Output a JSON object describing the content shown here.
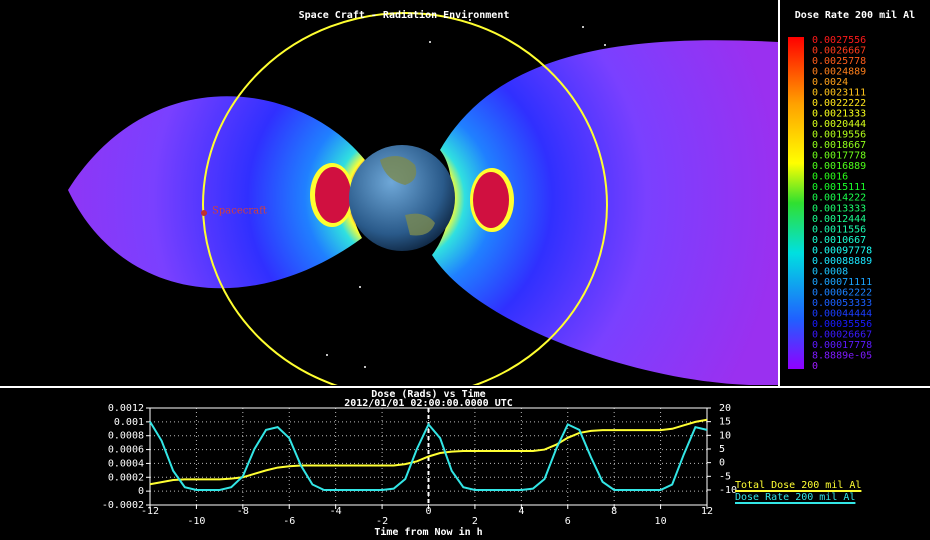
{
  "viewer": {
    "title": "Space Craft - Radiation Environment",
    "spacecraft_label": "Spacecraft"
  },
  "colorbar": {
    "title": "Dose Rate 200 mil Al",
    "labels": [
      "0.0027556",
      "0.0026667",
      "0.0025778",
      "0.0024889",
      "0.0024",
      "0.0023111",
      "0.0022222",
      "0.0021333",
      "0.0020444",
      "0.0019556",
      "0.0018667",
      "0.0017778",
      "0.0016889",
      "0.0016",
      "0.0015111",
      "0.0014222",
      "0.0013333",
      "0.0012444",
      "0.0011556",
      "0.0010667",
      "0.00097778",
      "0.00088889",
      "0.0008",
      "0.00071111",
      "0.00062222",
      "0.00053333",
      "0.00044444",
      "0.00035556",
      "0.00026667",
      "0.00017778",
      "8.8889e-05",
      "0"
    ]
  },
  "chart_data": {
    "type": "line",
    "title": "Dose (Rads) vs Time",
    "subtitle": "2012/01/01 02:00:00.0000 UTC",
    "x_label": "Time from Now in h",
    "x": [
      -12,
      -11.5,
      -11,
      -10.5,
      -10,
      -9.5,
      -9,
      -8.5,
      -8,
      -7.5,
      -7,
      -6.5,
      -6,
      -5.5,
      -5,
      -4.5,
      -4,
      -3.5,
      -3,
      -2.5,
      -2,
      -1.5,
      -1,
      -0.5,
      0,
      0.5,
      1,
      1.5,
      2,
      2.5,
      3,
      3.5,
      4,
      4.5,
      5,
      5.5,
      6,
      6.5,
      7,
      7.5,
      8,
      8.5,
      9,
      9.5,
      10,
      10.5,
      11,
      11.5,
      12
    ],
    "series": [
      {
        "name": "Total Dose 200 mil Al",
        "color": "#ffff33",
        "axis": "y",
        "values": [
          0.0001,
          0.00013,
          0.00016,
          0.00017,
          0.00017,
          0.00017,
          0.00017,
          0.00018,
          0.0002,
          0.00025,
          0.0003,
          0.00034,
          0.00036,
          0.00037,
          0.00037,
          0.00037,
          0.00037,
          0.00037,
          0.00037,
          0.00037,
          0.00037,
          0.00037,
          0.00039,
          0.00043,
          0.0005,
          0.00055,
          0.00057,
          0.00058,
          0.00058,
          0.00058,
          0.00058,
          0.00058,
          0.00058,
          0.00058,
          0.0006,
          0.00067,
          0.00077,
          0.00084,
          0.00087,
          0.00088,
          0.00088,
          0.00088,
          0.00088,
          0.00088,
          0.00088,
          0.0009,
          0.00095,
          0.001,
          0.00103
        ]
      },
      {
        "name": "Dose Rate 200 mil Al",
        "color": "#33e6e6",
        "axis": "y2",
        "values": [
          15,
          8,
          -3,
          -9,
          -10,
          -10,
          -10,
          -9,
          -5,
          5,
          12,
          13,
          9,
          -1,
          -8,
          -10,
          -10,
          -10,
          -10,
          -10,
          -10,
          -9.5,
          -6,
          5,
          14,
          9,
          -3,
          -9,
          -10,
          -10,
          -10,
          -10,
          -10,
          -9.5,
          -6,
          5,
          14,
          12,
          2,
          -7,
          -10,
          -10,
          -10,
          -10,
          -10,
          -8,
          3,
          13,
          12
        ]
      }
    ],
    "xlim": [
      -12,
      12
    ],
    "xticks": [
      -12,
      -10,
      -8,
      -6,
      -4,
      -2,
      0,
      2,
      4,
      6,
      8,
      10,
      12
    ],
    "ylim": [
      -0.0002,
      0.0012
    ],
    "yticks": [
      -0.0002,
      0,
      0.0002,
      0.0004,
      0.0006,
      0.0008,
      0.001,
      0.0012
    ],
    "y2lim": [
      -15.5,
      20
    ],
    "y2ticks": [
      -10,
      -5,
      0,
      5,
      10,
      15,
      20
    ],
    "grid": true
  }
}
